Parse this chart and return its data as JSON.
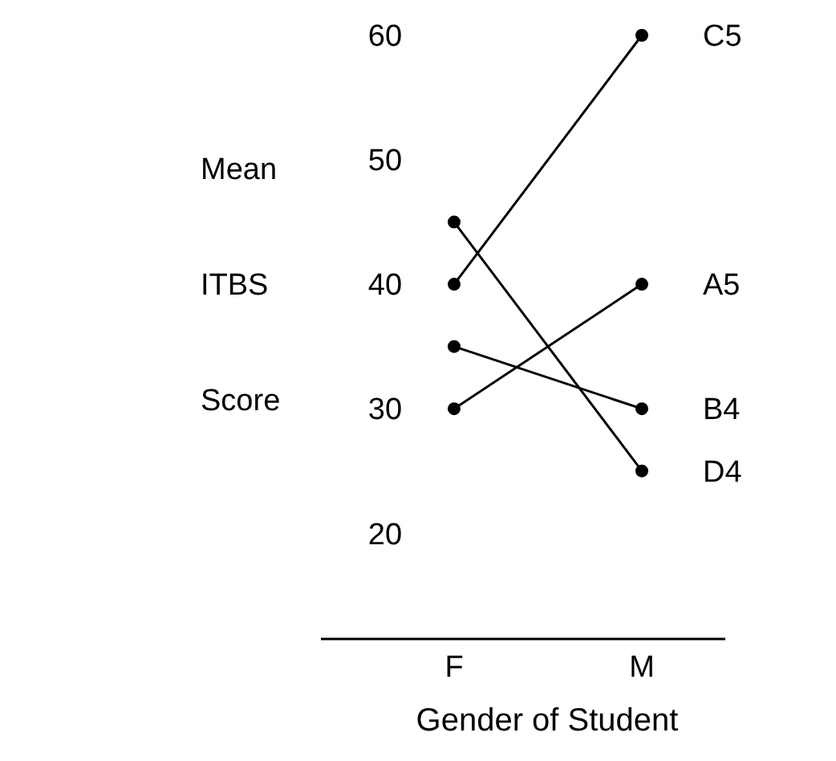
{
  "chart_data": {
    "type": "line",
    "ylabel": "Mean ITBS Score",
    "xlabel": "Gender of Student",
    "categories": [
      "F",
      "M"
    ],
    "series": [
      {
        "name": "C5",
        "color": "#000000",
        "values": [
          40,
          60
        ]
      },
      {
        "name": "A5",
        "color": "#000000",
        "values": [
          30,
          40
        ]
      },
      {
        "name": "B4",
        "color": "#000000",
        "values": [
          35,
          30
        ]
      },
      {
        "name": "D4",
        "color": "#000000",
        "values": [
          45,
          25
        ]
      }
    ],
    "ylim": [
      11.5,
      60
    ],
    "yticks": [
      20,
      30,
      40,
      50,
      60
    ],
    "grid": false,
    "marker": "circle",
    "line_style": "solid"
  }
}
